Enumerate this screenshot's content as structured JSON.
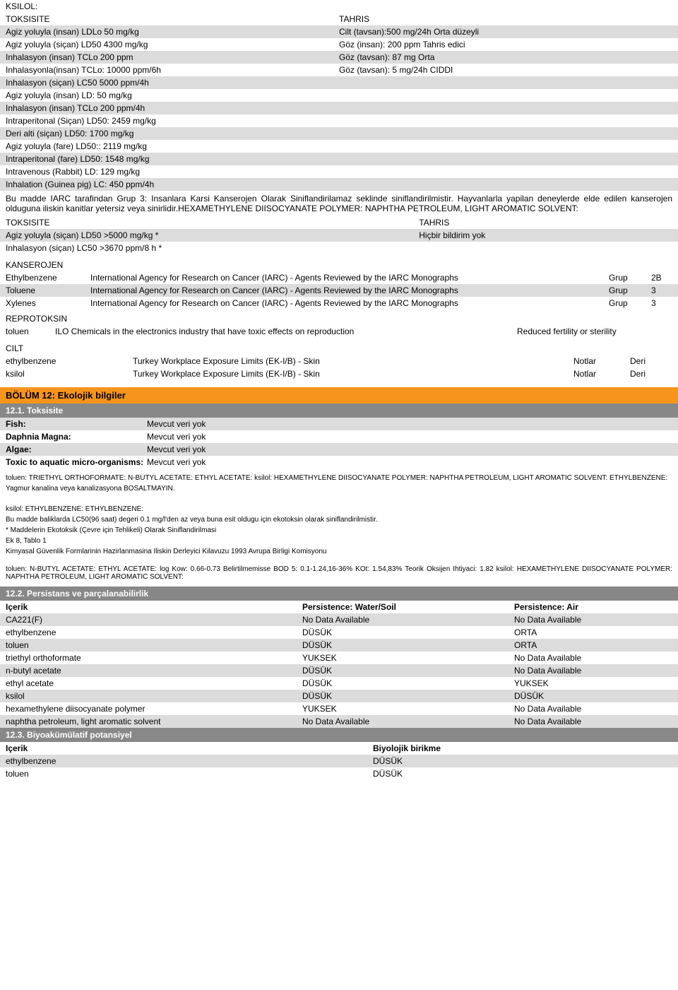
{
  "tox": {
    "title": "KSILOL:",
    "colA": "TOKSISITE",
    "colB": "TAHRIS",
    "rows": [
      {
        "a": "Agiz yoluyla (insan) LDLo 50 mg/kg",
        "b": "Cilt (tavsan):500 mg/24h Orta düzeyli"
      },
      {
        "a": "Agiz yoluyla (siçan) LD50 4300 mg/kg",
        "b": "Göz (insan): 200 ppm Tahris edici"
      },
      {
        "a": "Inhalasyon (insan) TCLo 200 ppm",
        "b": "Göz (tavsan): 87 mg Orta"
      },
      {
        "a": "Inhalasyonla(insan) TCLo: 10000 ppm/6h",
        "b": "Göz (tavsan): 5 mg/24h CIDDI"
      },
      {
        "a": "Inhalasyon (siçan) LC50 5000 ppm/4h",
        "b": ""
      },
      {
        "a": "Agiz yoluyla (insan) LD: 50 mg/kg",
        "b": ""
      },
      {
        "a": "Inhalasyon (insan) TCLo 200 ppm/4h",
        "b": ""
      },
      {
        "a": "Intraperitonal (Siçan) LD50: 2459 mg/kg",
        "b": ""
      },
      {
        "a": "Deri alti (siçan) LD50: 1700 mg/kg",
        "b": ""
      },
      {
        "a": "Agiz yoluyla (fare) LD50:: 2119 mg/kg",
        "b": ""
      },
      {
        "a": "Intraperitonal (fare) LD50: 1548 mg/kg",
        "b": ""
      },
      {
        "a": "Intravenous (Rabbit) LD: 129 mg/kg",
        "b": ""
      },
      {
        "a": "Inhalation (Guinea pig) LC: 450 ppm/4h",
        "b": ""
      }
    ]
  },
  "iarc_para": "Bu madde IARC tarafindan Grup 3: Insanlara Karsi Kanserojen Olarak Siniflandirilamaz seklinde siniflandirilmistir. Hayvanlarla yapilan deneylerde elde edilen kanserojen olduguna iliskin kanitlar yetersiz veya sinirlidir.HEXAMETHYLENE DIISOCYANATE POLYMER: NAPHTHA PETROLEUM, LIGHT AROMATIC SOLVENT:",
  "tox2": {
    "colA": "TOKSISITE",
    "colB": "TAHRIS",
    "row1": {
      "a": "Agiz yoluyla (siçan) LD50 >5000 mg/kg *",
      "b": "Hiçbir bildirim yok"
    },
    "row2": {
      "a": "Inhalasyon (siçan) LC50 >3670 ppm/8 h *",
      "b": ""
    }
  },
  "kans": {
    "title": "KANSEROJEN",
    "rows": [
      {
        "n": "Ethylbenzene",
        "d": "International Agency for Research on Cancer (IARC) - Agents Reviewed by the IARC Monographs",
        "g": "Grup",
        "v": "2B"
      },
      {
        "n": "Toluene",
        "d": "International Agency for Research on Cancer (IARC) - Agents Reviewed by the IARC Monographs",
        "g": "Grup",
        "v": "3"
      },
      {
        "n": "Xylenes",
        "d": "International Agency for Research on Cancer (IARC) - Agents Reviewed by the IARC Monographs",
        "g": "Grup",
        "v": "3"
      }
    ]
  },
  "repro": {
    "title": "REPROTOKSIN",
    "rows": [
      {
        "n": "toluen",
        "d": "ILO Chemicals in the electronics industry that have toxic effects on reproduction",
        "e": "Reduced fertility or sterility"
      }
    ]
  },
  "cilt": {
    "title": "CILT",
    "rows": [
      {
        "n": "ethylbenzene",
        "d": "Turkey Workplace Exposure Limits (EK-I/B) - Skin",
        "c": "Notlar",
        "v": "Deri"
      },
      {
        "n": "ksilol",
        "d": "Turkey Workplace Exposure Limits (EK-I/B) - Skin",
        "c": "Notlar",
        "v": "Deri"
      }
    ]
  },
  "s12": {
    "title": "BÖLÜM 12: Ekolojik bilgiler",
    "s1": "12.1. Toksisite",
    "kv": [
      {
        "k": "Fish:",
        "v": "Mevcut veri yok"
      },
      {
        "k": "Daphnia Magna:",
        "v": "Mevcut veri yok"
      },
      {
        "k": "Algae:",
        "v": "Mevcut veri yok"
      },
      {
        "k": "Toxic to aquatic micro-organisms:",
        "v": "Mevcut veri yok"
      }
    ],
    "note1": "toluen: TRIETHYL ORTHOFORMATE: N-BUTYL ACETATE: ETHYL ACETATE: ksilol: HEXAMETHYLENE DIISOCYANATE POLYMER: NAPHTHA PETROLEUM, LIGHT AROMATIC SOLVENT: ETHYLBENZENE:",
    "note2": "Yagmur kanalina veya kanalizasyona BOSALTMAYIN.",
    "note3": "ksilol: ETHYLBENZENE: ETHYLBENZENE:",
    "note4": "Bu madde baliklarda LC50(96 saat) degeri 0.1 mg/l'den az veya buna esit oldugu için ekotoksin olarak siniflandirilmistir.",
    "note5": "* Maddelerin Ekotoksik (Çevre için Tehlikeli) Olarak Siniflandirilmasi",
    "note6": "Ek 8, Tablo 1",
    "note7": "Kimyasal Güvenlik Formlarinin Hazirlanmasina Iliskin Derleyici Kilavuzu 1993 Avrupa Birligi Komisyonu",
    "note8": "toluen: N-BUTYL ACETATE: ETHYL ACETATE: log Kow: 0.66-0.73 Belirtilmemisse BOD 5: 0.1-1.24,16-36% KOt: 1.54,83% Teorik Oksijen Ihtiyaci: 1.82 ksilol: HEXAMETHYLENE DIISOCYANATE POLYMER: NAPHTHA PETROLEUM, LIGHT AROMATIC SOLVENT:",
    "s2": "12.2. Persistans ve parçalanabilirlik",
    "phdr": {
      "a": "Içerik",
      "b": "Persistence: Water/Soil",
      "c": "Persistence: Air"
    },
    "prows": [
      {
        "a": "CA221(F)",
        "b": "No Data Available",
        "c": "No Data Available"
      },
      {
        "a": "ethylbenzene",
        "b": "DÜSÜK",
        "c": "ORTA"
      },
      {
        "a": "toluen",
        "b": "DÜSÜK",
        "c": "ORTA"
      },
      {
        "a": "triethyl orthoformate",
        "b": "YUKSEK",
        "c": "No Data Available"
      },
      {
        "a": "n-butyl acetate",
        "b": "DÜSÜK",
        "c": "No Data Available"
      },
      {
        "a": "ethyl acetate",
        "b": "DÜSÜK",
        "c": "YUKSEK"
      },
      {
        "a": "ksilol",
        "b": "DÜSÜK",
        "c": "DÜSÜK"
      },
      {
        "a": "hexamethylene diisocyanate polymer",
        "b": "YUKSEK",
        "c": "No Data Available"
      },
      {
        "a": "naphtha petroleum, light aromatic solvent",
        "b": "No Data Available",
        "c": "No Data Available"
      }
    ],
    "s3": "12.3. Biyoakümülatif potansiyel",
    "bhdr": {
      "a": "Içerik",
      "b": "Biyolojik birikme"
    },
    "brows": [
      {
        "a": "ethylbenzene",
        "b": "DÜSÜK"
      },
      {
        "a": "toluen",
        "b": "DÜSÜK"
      }
    ]
  }
}
